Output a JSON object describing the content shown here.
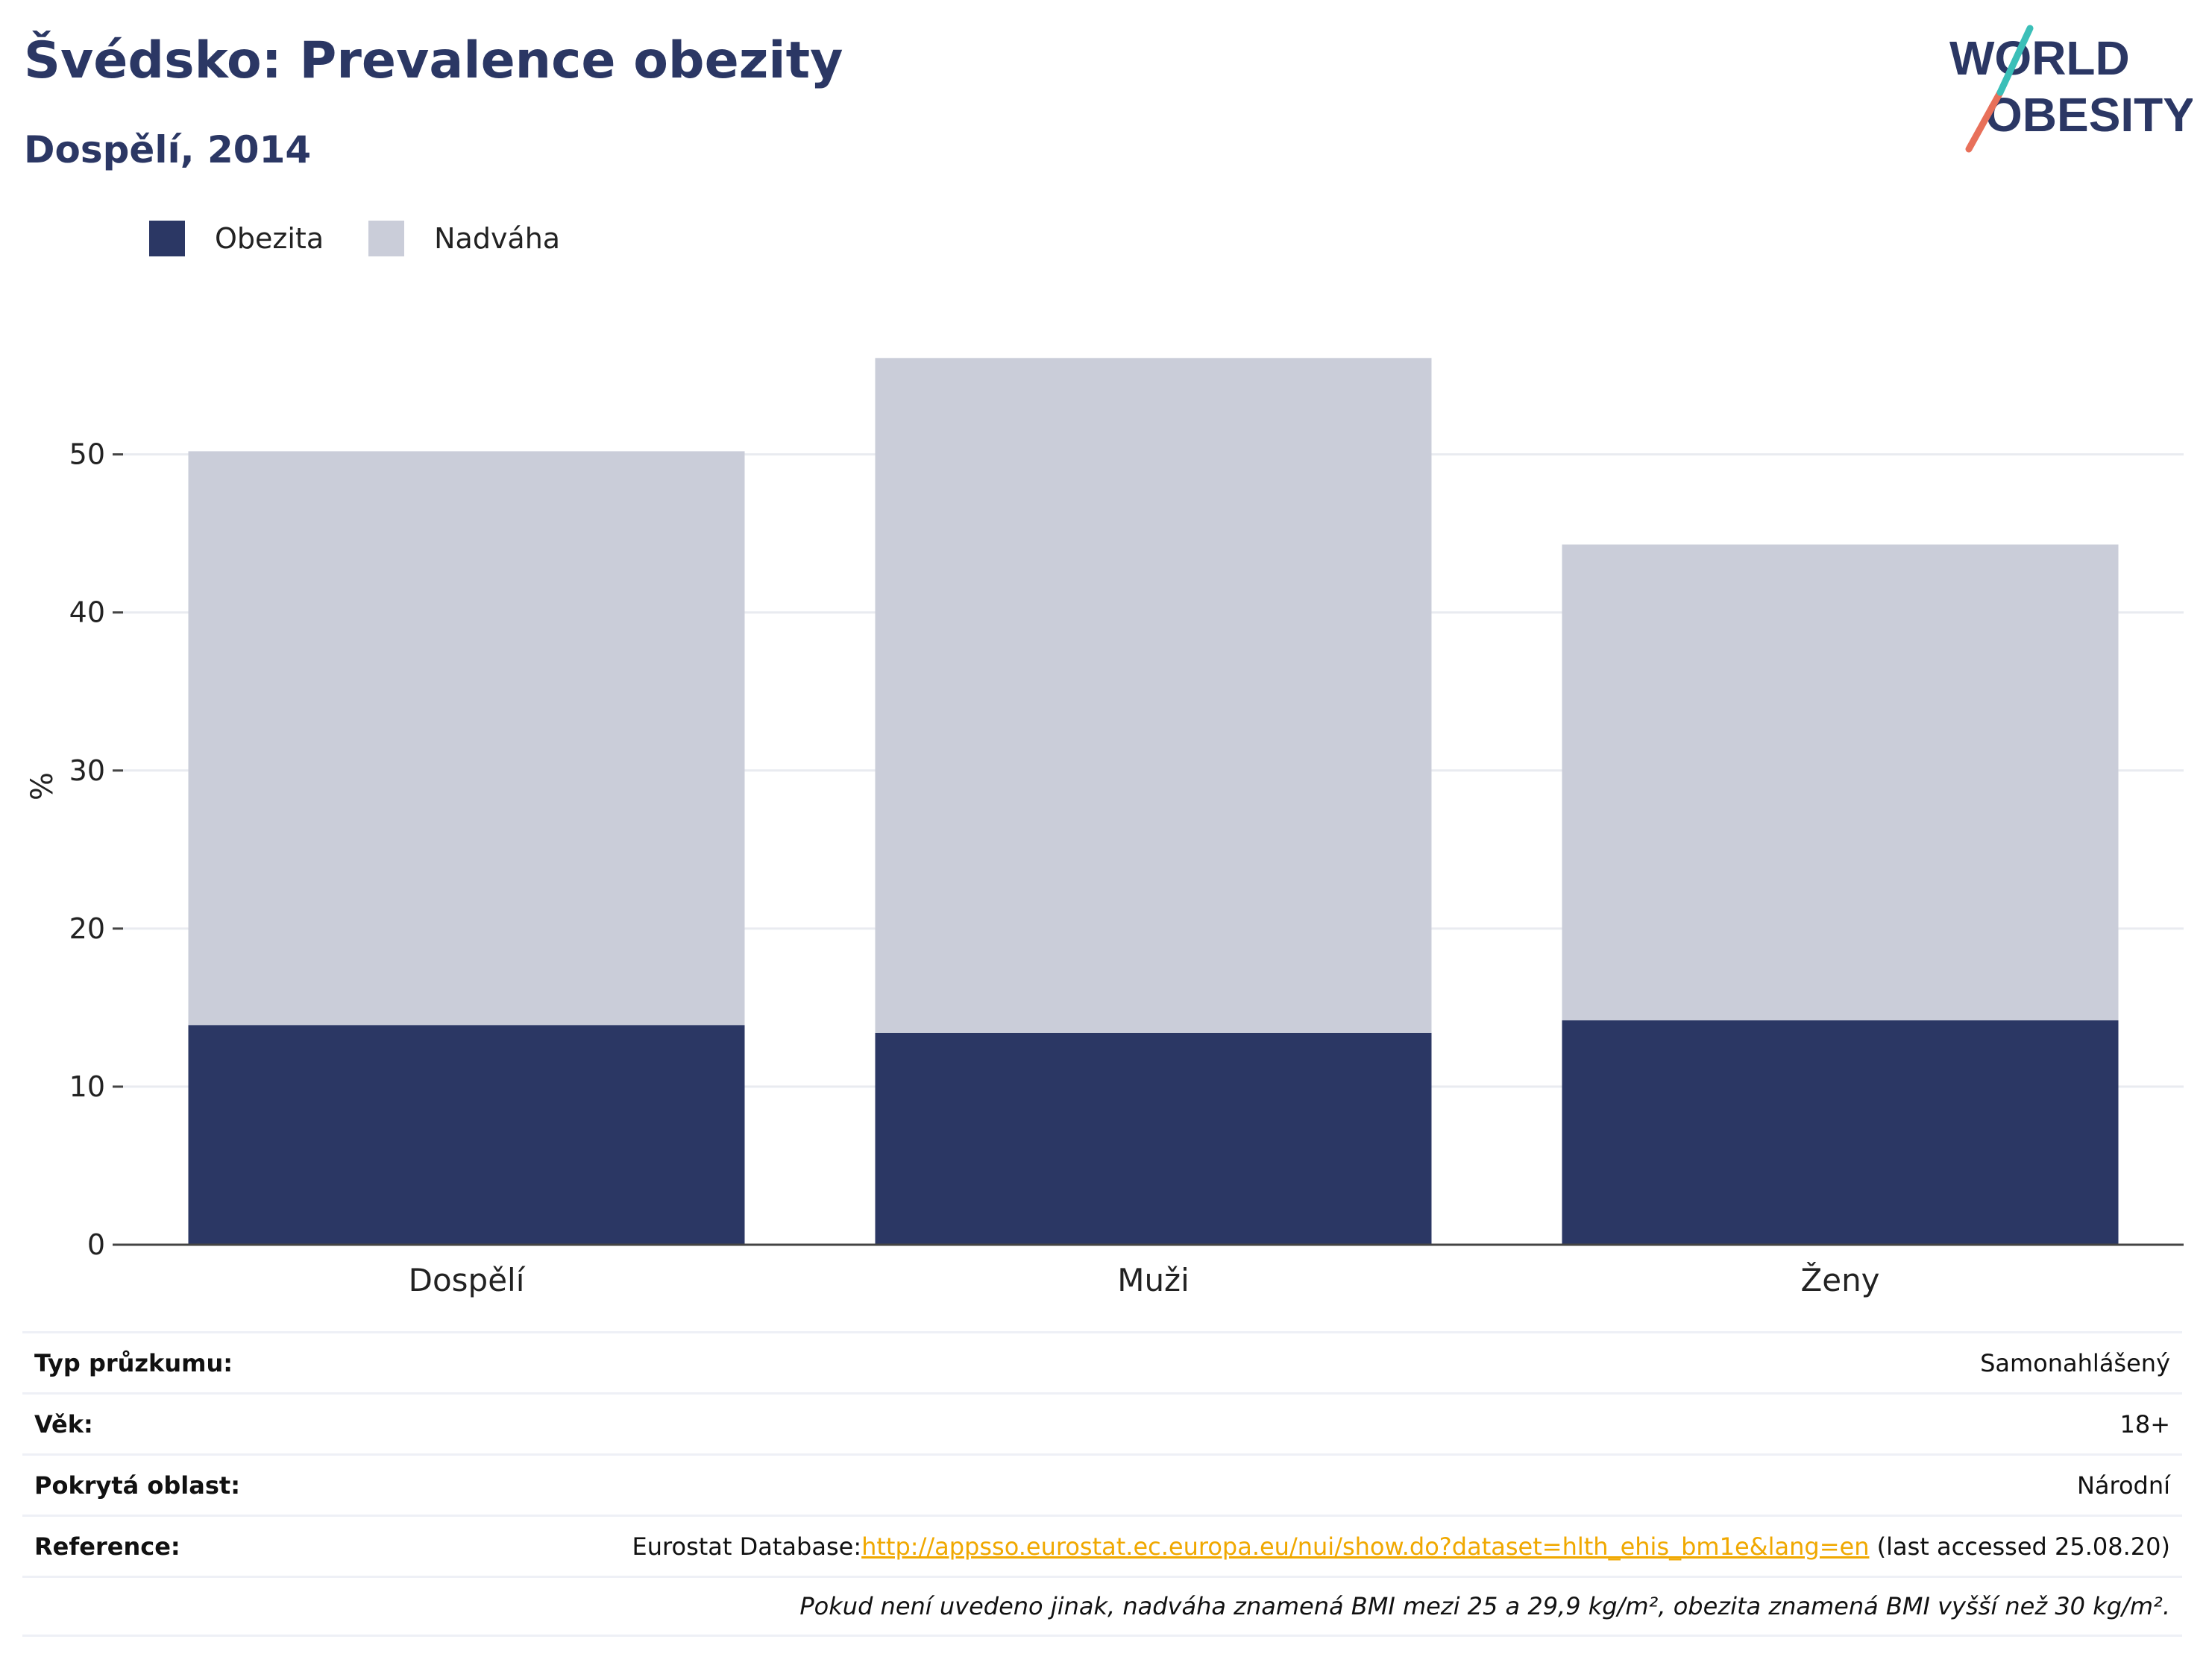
{
  "header": {
    "title": "Švédsko: Prevalence obezity",
    "subtitle": "Dospělí, 2014"
  },
  "logo": {
    "line1": "WORLD",
    "line2": "OBESITY",
    "colors": {
      "text": "#2b3764",
      "slash_coral": "#e8705a",
      "slash_teal": "#3bbfb8"
    }
  },
  "legend": [
    {
      "label": "Obezita",
      "color": "#2b3764"
    },
    {
      "label": "Nadváha",
      "color": "#cacdd9"
    }
  ],
  "chart_data": {
    "type": "bar",
    "stacked": true,
    "categories": [
      "Dospělí",
      "Muži",
      "Ženy"
    ],
    "series": [
      {
        "name": "Obezita",
        "color": "#2b3764",
        "values": [
          13.9,
          13.4,
          14.2
        ]
      },
      {
        "name": "Nadváha",
        "color": "#cacdd9",
        "values": [
          36.3,
          42.7,
          30.1
        ]
      }
    ],
    "xlabel": "",
    "ylabel": "%",
    "ylim": [
      0,
      58
    ],
    "yticks": [
      0,
      10,
      20,
      30,
      40,
      50
    ],
    "grid": true,
    "legend_position": "top-left"
  },
  "info": {
    "survey_type_label": "Typ průzkumu:",
    "survey_type_value": "Samonahlášený",
    "age_label": "Věk:",
    "age_value": "18+",
    "area_label": "Pokrytá oblast:",
    "area_value": "Národní",
    "reference_label": "Reference:",
    "reference_prefix": "Eurostat Database:",
    "reference_link": "http://appsso.eurostat.ec.europa.eu/nui/show.do?dataset=hlth_ehis_bm1e&lang=en",
    "reference_suffix": " (last accessed 25.08.20)",
    "note": "Pokud není uvedeno jinak, nadváha znamená BMI mezi 25 a 29,9 kg/m², obezita znamená BMI vyšší než 30 kg/m²."
  }
}
